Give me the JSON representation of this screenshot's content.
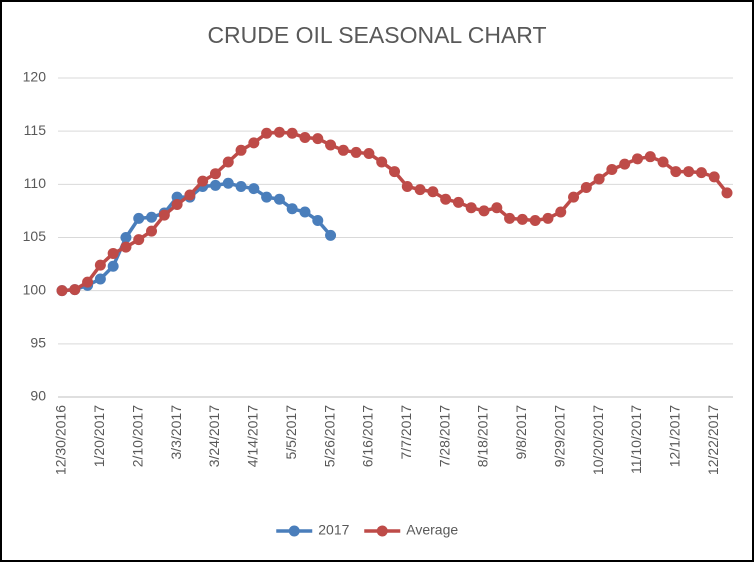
{
  "chart_data": {
    "type": "line",
    "title": "CRUDE OIL SEASONAL CHART",
    "categories": [
      "12/30/2016",
      null,
      null,
      "1/20/2017",
      null,
      null,
      "2/10/2017",
      null,
      null,
      "3/3/2017",
      null,
      null,
      "3/24/2017",
      null,
      null,
      "4/14/2017",
      null,
      null,
      "5/5/2017",
      null,
      null,
      "5/26/2017",
      null,
      null,
      "6/16/2017",
      null,
      null,
      "7/7/2017",
      null,
      null,
      "7/28/2017",
      null,
      null,
      "8/18/2017",
      null,
      null,
      "9/8/2017",
      null,
      null,
      "9/29/2017",
      null,
      null,
      "10/20/2017",
      null,
      null,
      "11/10/2017",
      null,
      null,
      "12/1/2017",
      null,
      null,
      "12/22/2017",
      null
    ],
    "series": [
      {
        "name": "2017",
        "color": "#4a7ebb",
        "values": [
          100,
          100.1,
          100.5,
          101.1,
          102.3,
          105,
          106.8,
          106.9,
          107.3,
          108.8,
          108.8,
          109.8,
          109.9,
          110.1,
          109.8,
          109.6,
          108.8,
          108.6,
          107.7,
          107.4,
          106.6,
          105.2,
          null,
          null,
          null,
          null,
          null,
          null,
          null,
          null,
          null,
          null,
          null,
          null,
          null,
          null,
          null,
          null,
          null,
          null,
          null,
          null,
          null,
          null,
          null,
          null,
          null,
          null,
          null,
          null,
          null,
          null,
          null
        ]
      },
      {
        "name": "Average",
        "color": "#be4b48",
        "values": [
          100,
          100.1,
          100.8,
          102.4,
          103.5,
          104.1,
          104.8,
          105.6,
          107.1,
          108.1,
          109,
          110.3,
          111,
          112.1,
          113.2,
          113.9,
          114.8,
          114.9,
          114.8,
          114.4,
          114.3,
          113.7,
          113.2,
          113,
          112.9,
          112.1,
          111.2,
          109.8,
          109.5,
          109.3,
          108.6,
          108.3,
          107.8,
          107.5,
          107.8,
          106.8,
          106.7,
          106.6,
          106.8,
          107.4,
          108.8,
          109.7,
          110.5,
          111.4,
          111.9,
          112.4,
          112.6,
          112.1,
          111.2,
          111.2,
          111.1,
          110.7,
          109.2
        ]
      }
    ],
    "ylim": [
      90,
      120
    ],
    "yticks": [
      90,
      95,
      100,
      105,
      110,
      115,
      120
    ],
    "grid": true,
    "legend": "bottom"
  }
}
